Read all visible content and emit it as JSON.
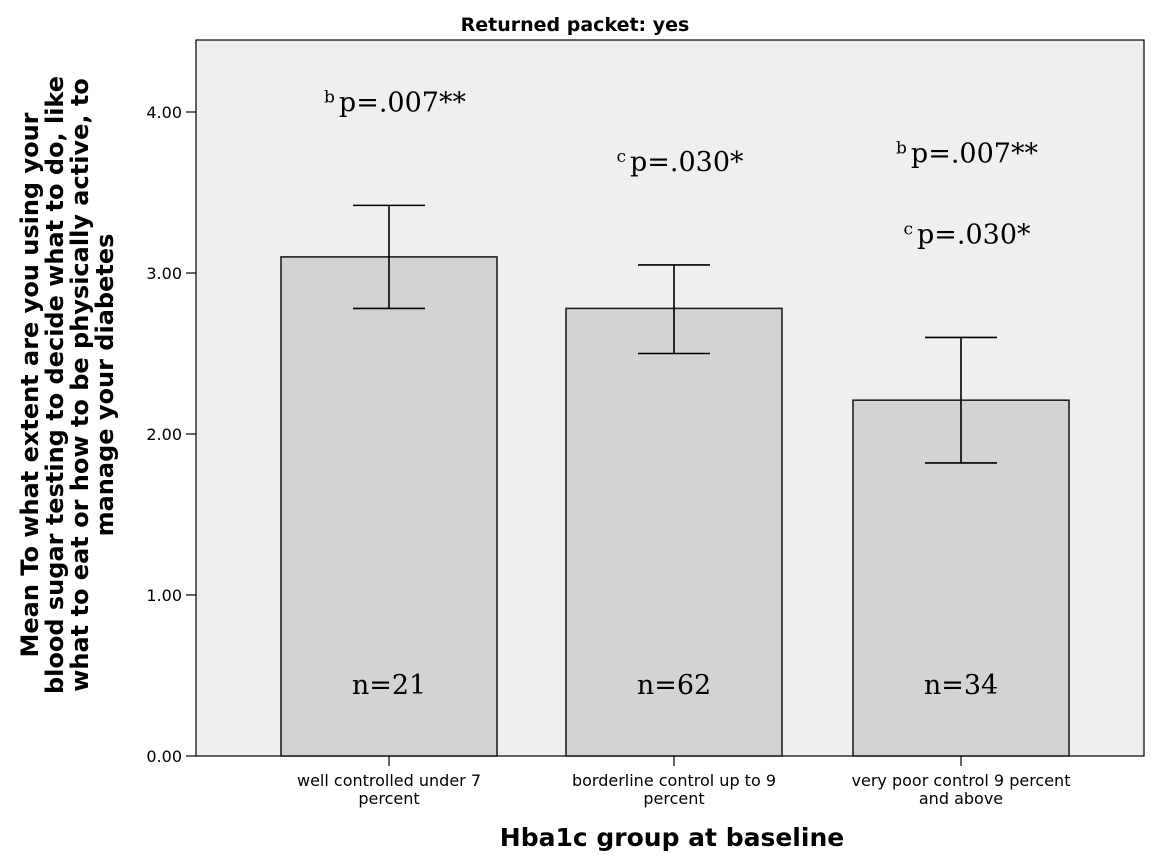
{
  "chart_data": {
    "type": "bar",
    "title": "Returned packet: yes",
    "xlabel": "Hba1c group at baseline",
    "ylabel": [
      "Mean To what extent are you using your",
      "blood sugar testing to decide what to do, like",
      "what to eat or how to be physically active, to",
      "manage your diabetes"
    ],
    "ylim": [
      0,
      4.4
    ],
    "yticks": [
      0,
      1,
      2,
      3,
      4
    ],
    "ytick_labels": [
      "0.00",
      "1.00",
      "2.00",
      "3.00",
      "4.00"
    ],
    "categories": [
      [
        "well controlled under 7",
        "percent"
      ],
      [
        "borderline control up to 9",
        "percent"
      ],
      [
        "very poor control 9 percent",
        "and above"
      ]
    ],
    "values": [
      3.1,
      2.78,
      2.21
    ],
    "error_bars": [
      {
        "low": 2.78,
        "high": 3.42
      },
      {
        "low": 2.5,
        "high": 3.05
      },
      {
        "low": 1.82,
        "high": 2.6
      }
    ],
    "n_labels": [
      "n=21",
      "n=62",
      "n=34"
    ],
    "annotations": [
      [
        {
          "sup": "b",
          "text": "p=.007**"
        }
      ],
      [
        {
          "sup": "c",
          "text": "p=.030*"
        }
      ],
      [
        {
          "sup": "b",
          "text": "p=.007**"
        },
        {
          "sup": "c",
          "text": "p=.030*"
        }
      ]
    ],
    "grid": false,
    "legend": "none",
    "colors": {
      "plot_background": "#efefef",
      "bar_fill": "#d3d3d3",
      "bar_stroke": "#222222",
      "axis": "#000000",
      "text": "#000000"
    }
  }
}
